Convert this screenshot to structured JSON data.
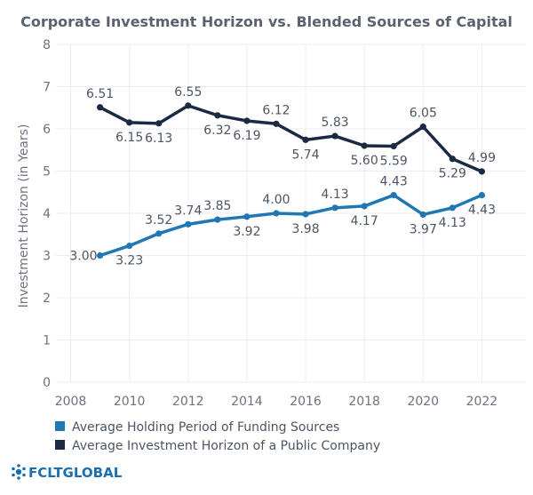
{
  "chart_data": {
    "type": "line",
    "title": "Corporate Investment Horizon vs. Blended Sources of Capital",
    "xlabel": "",
    "ylabel": "Investment Horizon (in Years)",
    "xlim": [
      2007.5,
      2023.5
    ],
    "ylim": [
      0,
      8
    ],
    "x_ticks": [
      2008,
      2010,
      2012,
      2014,
      2016,
      2018,
      2020,
      2022
    ],
    "y_ticks": [
      0,
      1,
      2,
      3,
      4,
      5,
      6,
      7,
      8
    ],
    "grid": true,
    "legend_position": "bottom-left",
    "x": [
      2009,
      2010,
      2011,
      2012,
      2013,
      2014,
      2015,
      2016,
      2017,
      2018,
      2019,
      2020,
      2021,
      2022
    ],
    "series": [
      {
        "name": "Average Holding Period of Funding Sources",
        "color": "#1f77b4",
        "values": [
          3.0,
          3.23,
          3.52,
          3.74,
          3.85,
          3.92,
          4.0,
          3.98,
          4.13,
          4.17,
          4.43,
          3.97,
          4.13,
          4.43
        ],
        "labels": [
          "3.00",
          "3.23",
          "3.52",
          "3.74",
          "3.85",
          "3.92",
          "4.00",
          "3.98",
          "4.13",
          "4.17",
          "4.43",
          "3.97",
          "4.13",
          "4.43"
        ]
      },
      {
        "name": "Average Investment Horizon of a Public Company",
        "color": "#1b2a44",
        "values": [
          6.51,
          6.15,
          6.13,
          6.55,
          6.32,
          6.19,
          6.12,
          5.74,
          5.83,
          5.6,
          5.59,
          6.05,
          5.29,
          4.99
        ],
        "labels": [
          "6.51",
          "6.15",
          "6.13",
          "6.55",
          "6.32",
          "6.19",
          "6.12",
          "5.74",
          "5.83",
          "5.60",
          "5.59",
          "6.05",
          "5.29",
          "4.99"
        ]
      }
    ]
  },
  "brand": {
    "name": "FCLTGLOBAL",
    "icon": "fcltglobal-logo-icon",
    "color": "#1b6fb0"
  }
}
